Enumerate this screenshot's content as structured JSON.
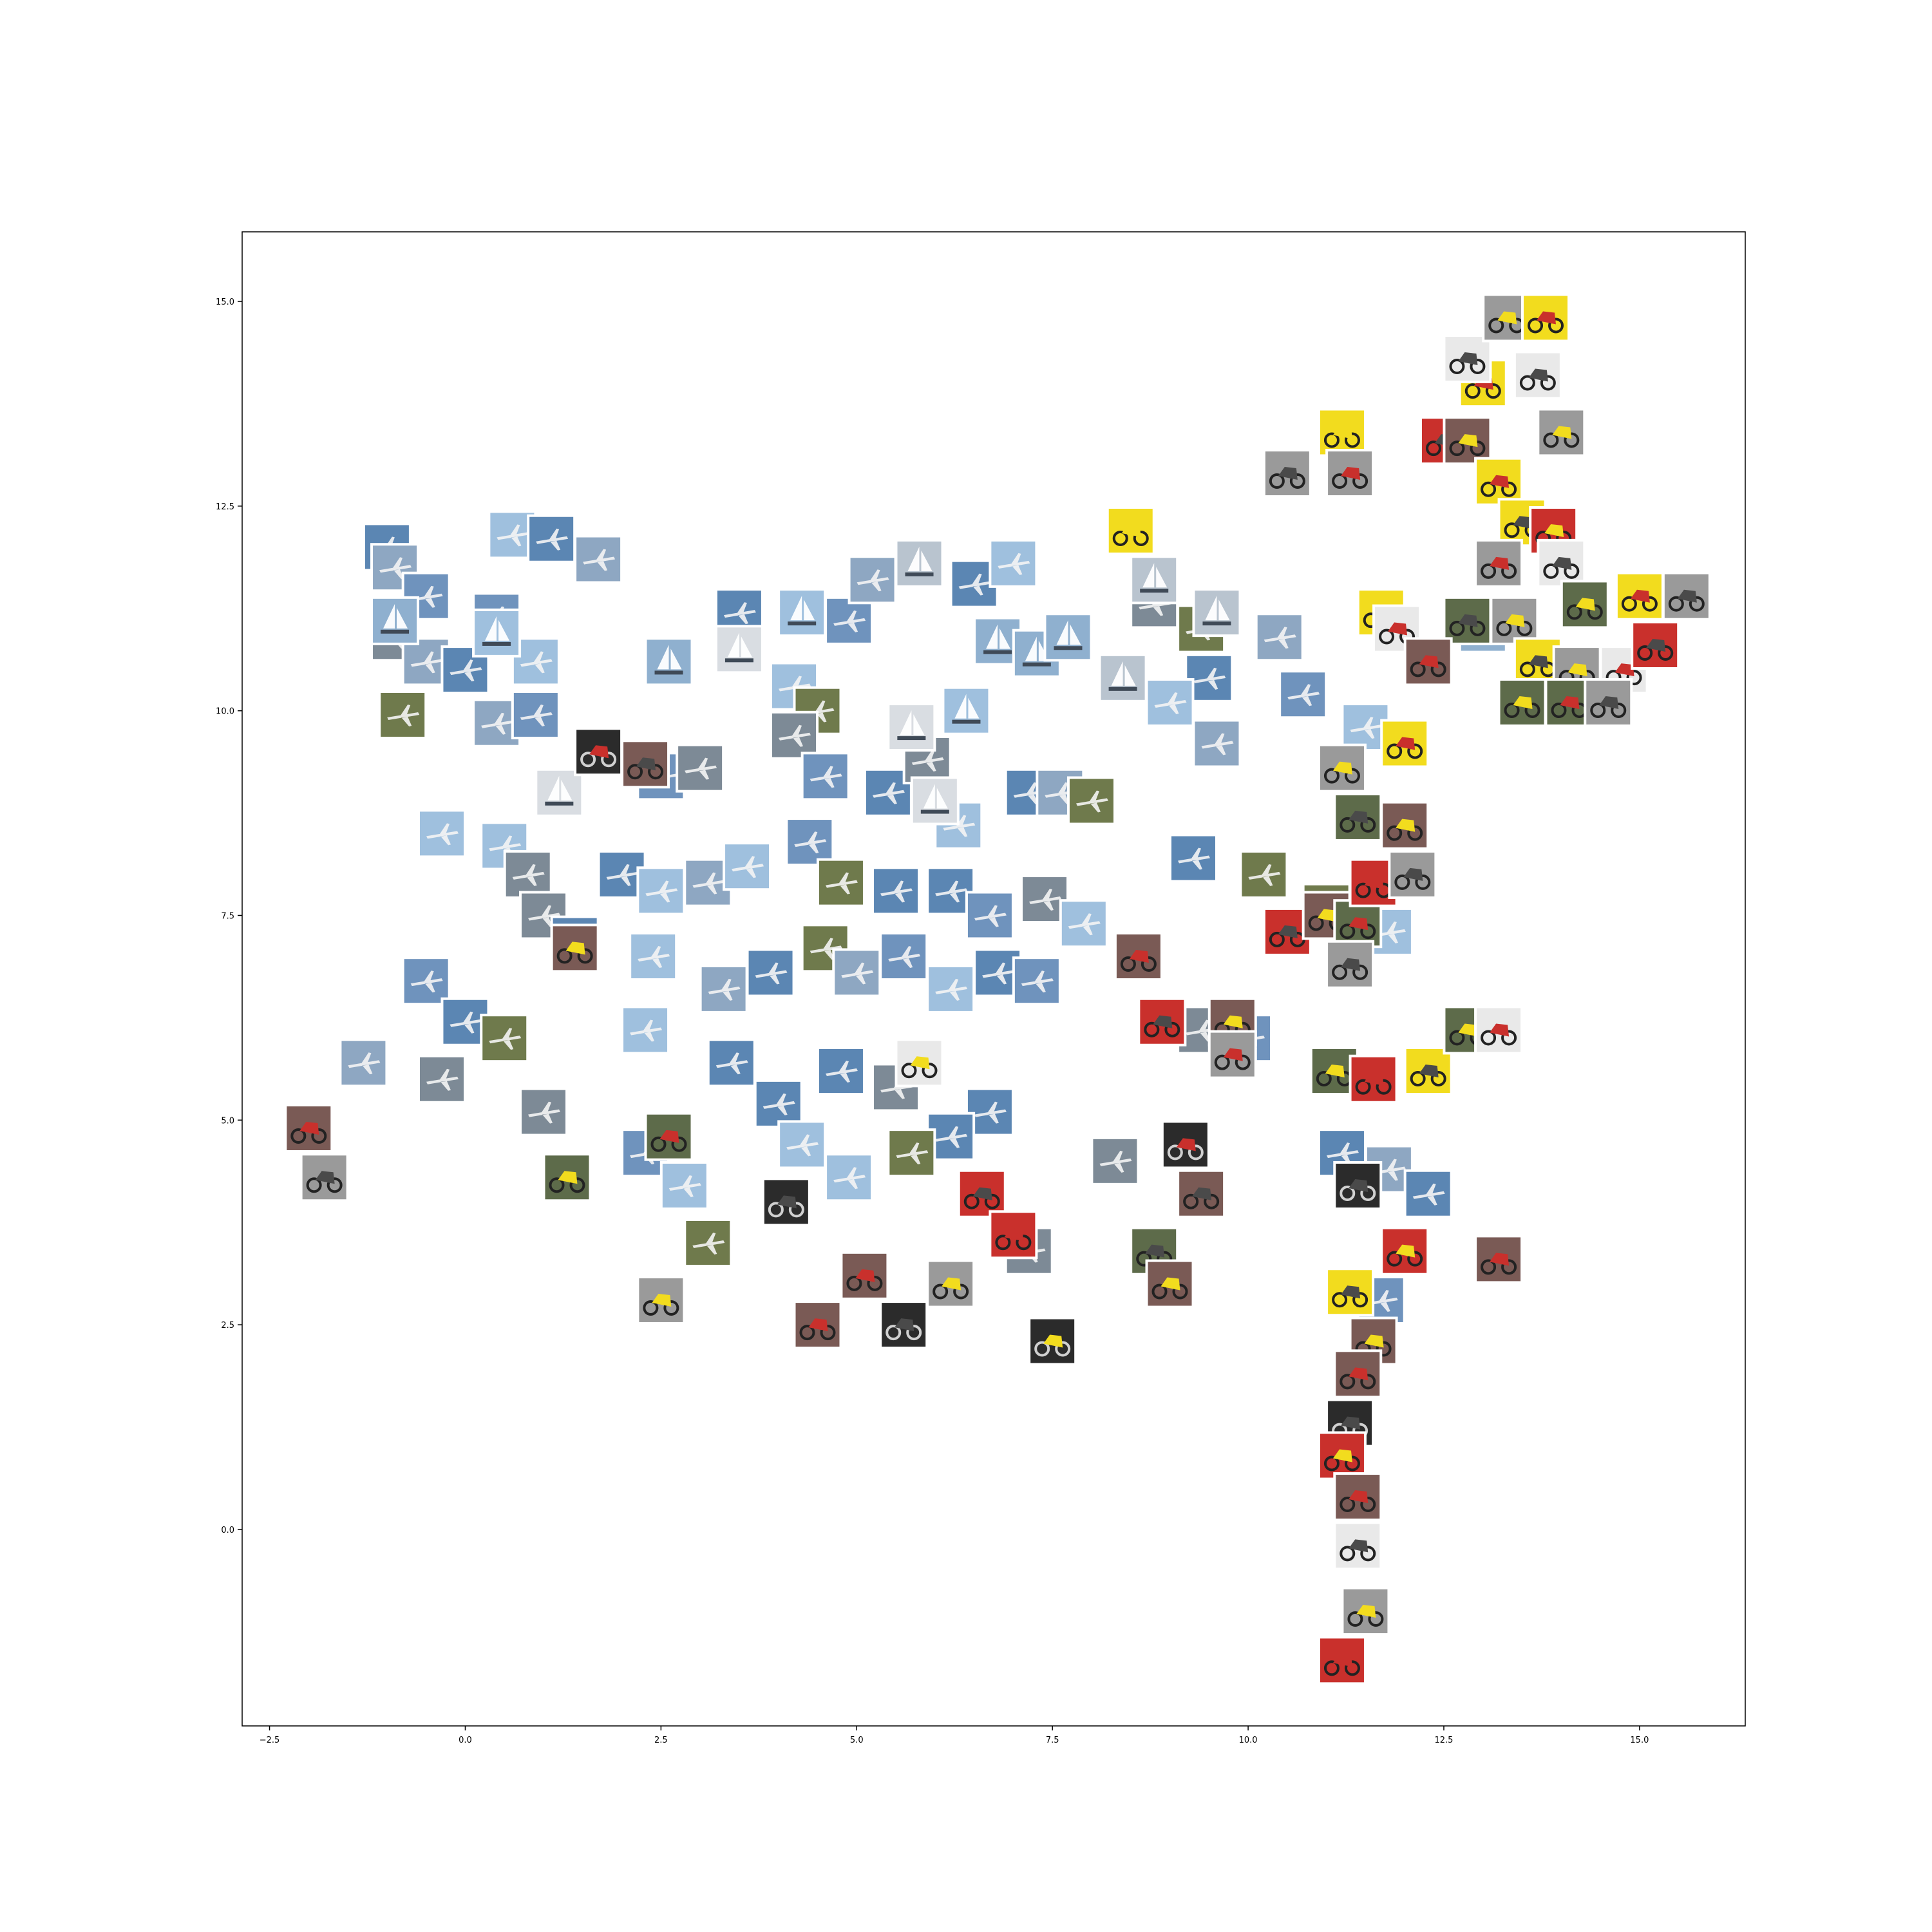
{
  "chart_data": {
    "type": "scatter",
    "description_of_marks": "image thumbnails placed at 2D embedding coordinates",
    "xlim": [
      -2.85,
      16.35
    ],
    "ylim": [
      -2.4,
      15.85
    ],
    "xticks": [
      -2.5,
      0.0,
      2.5,
      5.0,
      7.5,
      10.0,
      12.5,
      15.0
    ],
    "xtick_labels": [
      "−2.5",
      "0.0",
      "2.5",
      "5.0",
      "7.5",
      "10.0",
      "12.5",
      "15.0"
    ],
    "yticks": [
      0.0,
      2.5,
      5.0,
      7.5,
      10.0,
      12.5,
      15.0
    ],
    "ytick_labels": [
      "0.0",
      "2.5",
      "5.0",
      "7.5",
      "10.0",
      "12.5",
      "15.0"
    ],
    "grid": false,
    "categories": [
      "airplane",
      "motorbike",
      "sailboat"
    ],
    "colors": {
      "airplane": "#6f93bd",
      "motorbike": "#7a5a55",
      "sailboat": "#b9c4cf",
      "sky_light": "#9fc0de",
      "dark": "#2b2b2b",
      "red_bike": "#c9302c",
      "yellow": "#f2dc1e",
      "green_field": "#6f7a4c"
    },
    "series": [
      {
        "name": "airplane",
        "points": [
          [
            -1.0,
            12.0
          ],
          [
            -0.9,
            11.75
          ],
          [
            -0.5,
            11.4
          ],
          [
            0.6,
            12.15
          ],
          [
            1.1,
            12.1
          ],
          [
            1.7,
            11.85
          ],
          [
            0.4,
            11.15
          ],
          [
            -0.9,
            10.9
          ],
          [
            -0.5,
            10.6
          ],
          [
            0.0,
            10.5
          ],
          [
            0.9,
            10.6
          ],
          [
            -0.8,
            9.95
          ],
          [
            0.4,
            9.85
          ],
          [
            0.9,
            9.95
          ],
          [
            3.5,
            11.2
          ],
          [
            4.2,
            10.3
          ],
          [
            4.5,
            10.0
          ],
          [
            4.9,
            11.1
          ],
          [
            5.2,
            11.6
          ],
          [
            6.5,
            11.55
          ],
          [
            7.0,
            11.8
          ],
          [
            2.5,
            9.2
          ],
          [
            3.0,
            9.3
          ],
          [
            4.2,
            9.7
          ],
          [
            4.6,
            9.2
          ],
          [
            5.4,
            9.0
          ],
          [
            5.9,
            9.4
          ],
          [
            6.3,
            8.6
          ],
          [
            7.2,
            9.0
          ],
          [
            7.6,
            9.0
          ],
          [
            8.0,
            8.9
          ],
          [
            -0.3,
            8.5
          ],
          [
            0.5,
            8.35
          ],
          [
            0.8,
            8.0
          ],
          [
            2.0,
            8.0
          ],
          [
            2.5,
            7.8
          ],
          [
            3.1,
            7.9
          ],
          [
            3.6,
            8.1
          ],
          [
            4.4,
            8.4
          ],
          [
            4.8,
            7.9
          ],
          [
            5.5,
            7.8
          ],
          [
            6.2,
            7.8
          ],
          [
            6.7,
            7.5
          ],
          [
            7.4,
            7.7
          ],
          [
            7.9,
            7.4
          ],
          [
            1.0,
            7.5
          ],
          [
            1.4,
            7.2
          ],
          [
            2.4,
            7.0
          ],
          [
            3.3,
            6.6
          ],
          [
            3.9,
            6.8
          ],
          [
            4.6,
            7.1
          ],
          [
            5.0,
            6.8
          ],
          [
            5.6,
            7.0
          ],
          [
            6.2,
            6.6
          ],
          [
            6.8,
            6.8
          ],
          [
            7.3,
            6.7
          ],
          [
            -0.5,
            6.7
          ],
          [
            0.0,
            6.2
          ],
          [
            0.5,
            6.0
          ],
          [
            -1.3,
            5.7
          ],
          [
            -0.3,
            5.5
          ],
          [
            2.3,
            6.1
          ],
          [
            3.4,
            5.7
          ],
          [
            4.0,
            5.2
          ],
          [
            4.8,
            5.6
          ],
          [
            5.5,
            5.4
          ],
          [
            6.7,
            5.1
          ],
          [
            6.2,
            4.8
          ],
          [
            4.3,
            4.7
          ],
          [
            4.9,
            4.3
          ],
          [
            5.7,
            4.6
          ],
          [
            2.3,
            4.6
          ],
          [
            2.8,
            4.2
          ],
          [
            3.1,
            3.5
          ],
          [
            1.0,
            5.1
          ],
          [
            7.2,
            3.4
          ],
          [
            8.3,
            4.5
          ],
          [
            8.8,
            11.3
          ],
          [
            9.4,
            11.0
          ],
          [
            9.6,
            9.6
          ],
          [
            10.4,
            10.9
          ],
          [
            10.7,
            10.2
          ],
          [
            11.5,
            9.8
          ],
          [
            9.5,
            10.4
          ],
          [
            9.0,
            10.1
          ],
          [
            9.3,
            8.2
          ],
          [
            10.2,
            8.0
          ],
          [
            11.0,
            7.6
          ],
          [
            11.8,
            7.3
          ],
          [
            9.4,
            6.1
          ],
          [
            10.0,
            6.0
          ],
          [
            11.2,
            4.6
          ],
          [
            11.8,
            4.4
          ],
          [
            12.3,
            4.1
          ],
          [
            11.7,
            2.8
          ]
        ]
      },
      {
        "name": "sailboat",
        "points": [
          [
            -0.9,
            11.1
          ],
          [
            0.4,
            10.95
          ],
          [
            2.6,
            10.6
          ],
          [
            3.5,
            10.75
          ],
          [
            4.3,
            11.2
          ],
          [
            5.8,
            11.8
          ],
          [
            6.8,
            10.85
          ],
          [
            7.3,
            10.7
          ],
          [
            6.4,
            10.0
          ],
          [
            8.8,
            11.6
          ],
          [
            9.6,
            11.2
          ],
          [
            1.2,
            9.0
          ],
          [
            6.0,
            8.9
          ],
          [
            5.7,
            9.8
          ],
          [
            13.0,
            11.0
          ],
          [
            8.4,
            10.4
          ],
          [
            7.7,
            10.9
          ]
        ]
      },
      {
        "name": "motorbike",
        "points": [
          [
            1.7,
            9.5
          ],
          [
            2.3,
            9.35
          ],
          [
            1.4,
            7.1
          ],
          [
            -2.0,
            4.9
          ],
          [
            -1.8,
            4.3
          ],
          [
            1.3,
            4.3
          ],
          [
            2.6,
            4.8
          ],
          [
            4.1,
            4.0
          ],
          [
            2.5,
            2.8
          ],
          [
            4.5,
            2.5
          ],
          [
            5.6,
            2.5
          ],
          [
            6.2,
            3.0
          ],
          [
            5.1,
            3.1
          ],
          [
            6.6,
            4.1
          ],
          [
            7.5,
            2.3
          ],
          [
            7.0,
            3.6
          ],
          [
            8.8,
            3.4
          ],
          [
            9.0,
            3.0
          ],
          [
            9.2,
            4.7
          ],
          [
            9.4,
            4.1
          ],
          [
            5.8,
            5.7
          ],
          [
            8.6,
            7.0
          ],
          [
            8.9,
            6.2
          ],
          [
            9.8,
            6.2
          ],
          [
            9.8,
            5.8
          ],
          [
            10.5,
            7.3
          ],
          [
            11.0,
            7.5
          ],
          [
            11.4,
            7.4
          ],
          [
            11.3,
            6.9
          ],
          [
            11.1,
            5.6
          ],
          [
            11.6,
            5.5
          ],
          [
            12.3,
            5.6
          ],
          [
            12.8,
            6.1
          ],
          [
            13.2,
            6.1
          ],
          [
            11.4,
            4.2
          ],
          [
            12.0,
            3.4
          ],
          [
            13.2,
            3.3
          ],
          [
            11.3,
            2.9
          ],
          [
            11.6,
            2.3
          ],
          [
            11.4,
            1.9
          ],
          [
            11.3,
            1.3
          ],
          [
            11.2,
            0.9
          ],
          [
            11.4,
            0.4
          ],
          [
            11.4,
            -0.2
          ],
          [
            11.5,
            -1.0
          ],
          [
            11.2,
            -1.6
          ],
          [
            10.5,
            12.9
          ],
          [
            11.2,
            13.4
          ],
          [
            11.3,
            12.9
          ],
          [
            12.5,
            13.3
          ],
          [
            12.8,
            13.3
          ],
          [
            13.0,
            14.0
          ],
          [
            12.8,
            14.3
          ],
          [
            13.3,
            14.8
          ],
          [
            13.8,
            14.8
          ],
          [
            13.7,
            14.1
          ],
          [
            14.0,
            13.4
          ],
          [
            13.2,
            12.8
          ],
          [
            13.5,
            12.3
          ],
          [
            13.9,
            12.2
          ],
          [
            13.2,
            11.8
          ],
          [
            14.0,
            11.8
          ],
          [
            14.3,
            11.3
          ],
          [
            15.0,
            11.4
          ],
          [
            15.6,
            11.4
          ],
          [
            11.7,
            11.2
          ],
          [
            11.9,
            11.0
          ],
          [
            12.8,
            11.1
          ],
          [
            13.4,
            11.1
          ],
          [
            12.3,
            10.6
          ],
          [
            13.7,
            10.6
          ],
          [
            14.2,
            10.5
          ],
          [
            14.8,
            10.5
          ],
          [
            15.2,
            10.8
          ],
          [
            13.5,
            10.1
          ],
          [
            14.1,
            10.1
          ],
          [
            14.6,
            10.1
          ],
          [
            11.2,
            9.3
          ],
          [
            12.0,
            9.6
          ],
          [
            11.4,
            8.7
          ],
          [
            12.0,
            8.6
          ],
          [
            11.6,
            7.9
          ],
          [
            12.1,
            8.0
          ],
          [
            8.5,
            12.2
          ]
        ]
      }
    ]
  }
}
